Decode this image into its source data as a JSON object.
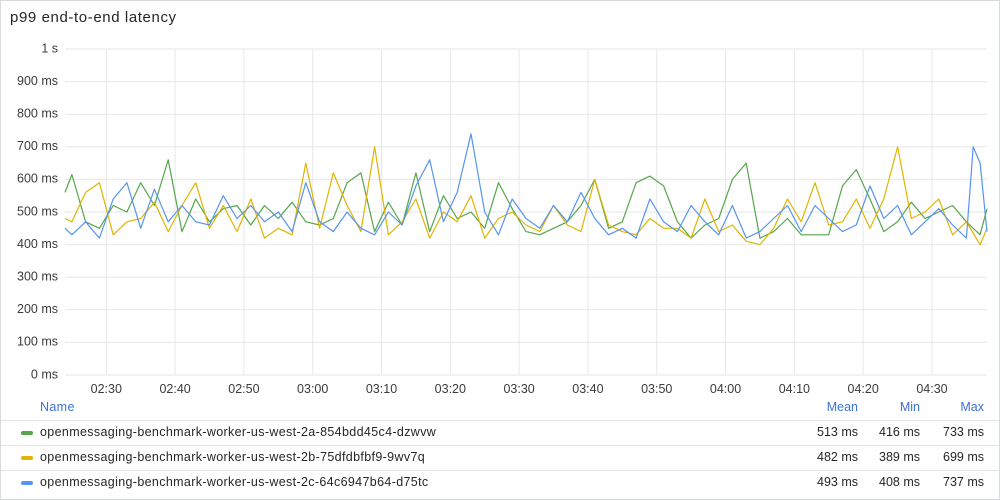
{
  "panel": {
    "title": "p99 end-to-end latency"
  },
  "legend": {
    "headers": {
      "name": "Name",
      "mean": "Mean",
      "min": "Min",
      "max": "Max"
    },
    "rows": [
      {
        "name": "openmessaging-benchmark-worker-us-west-2a-854bdd45c4-dzwvw",
        "color": "#56a64b",
        "mean": "513 ms",
        "min": "416 ms",
        "max": "733 ms"
      },
      {
        "name": "openmessaging-benchmark-worker-us-west-2b-75dfdbfbf9-9wv7q",
        "color": "#e0b400",
        "mean": "482 ms",
        "min": "389 ms",
        "max": "699 ms"
      },
      {
        "name": "openmessaging-benchmark-worker-us-west-2c-64c6947b64-d75tc",
        "color": "#5794f2",
        "mean": "493 ms",
        "min": "408 ms",
        "max": "737 ms"
      }
    ]
  },
  "chart_data": {
    "type": "line",
    "title": "p99 end-to-end latency",
    "xlabel": "",
    "ylabel": "",
    "unit": "ms",
    "ylim": [
      0,
      1000
    ],
    "y_ticks": [
      {
        "value": 1000,
        "label": "1 s"
      },
      {
        "value": 900,
        "label": "900 ms"
      },
      {
        "value": 800,
        "label": "800 ms"
      },
      {
        "value": 700,
        "label": "700 ms"
      },
      {
        "value": 600,
        "label": "600 ms"
      },
      {
        "value": 500,
        "label": "500 ms"
      },
      {
        "value": 400,
        "label": "400 ms"
      },
      {
        "value": 300,
        "label": "300 ms"
      },
      {
        "value": 200,
        "label": "200 ms"
      },
      {
        "value": 100,
        "label": "100 ms"
      },
      {
        "value": 0,
        "label": "0 ms"
      }
    ],
    "x_range": [
      "02:24",
      "04:38"
    ],
    "x_ticks": [
      "02:30",
      "02:40",
      "02:50",
      "03:00",
      "03:10",
      "03:20",
      "03:30",
      "03:40",
      "03:50",
      "04:00",
      "04:10",
      "04:20",
      "04:30"
    ],
    "grid": true,
    "legend_position": "bottom",
    "series": [
      {
        "name": "openmessaging-benchmark-worker-us-west-2a-854bdd45c4-dzwvw",
        "color": "#56a64b",
        "points": [
          [
            "02:24",
            560
          ],
          [
            "02:25",
            615
          ],
          [
            "02:27",
            470
          ],
          [
            "02:29",
            450
          ],
          [
            "02:31",
            520
          ],
          [
            "02:33",
            500
          ],
          [
            "02:35",
            590
          ],
          [
            "02:37",
            520
          ],
          [
            "02:39",
            660
          ],
          [
            "02:41",
            440
          ],
          [
            "02:43",
            540
          ],
          [
            "02:45",
            470
          ],
          [
            "02:47",
            510
          ],
          [
            "02:49",
            520
          ],
          [
            "02:51",
            460
          ],
          [
            "02:53",
            520
          ],
          [
            "02:55",
            480
          ],
          [
            "02:57",
            530
          ],
          [
            "02:59",
            470
          ],
          [
            "03:01",
            460
          ],
          [
            "03:03",
            480
          ],
          [
            "03:05",
            590
          ],
          [
            "03:07",
            620
          ],
          [
            "03:09",
            440
          ],
          [
            "03:11",
            530
          ],
          [
            "03:13",
            460
          ],
          [
            "03:15",
            620
          ],
          [
            "03:17",
            440
          ],
          [
            "03:19",
            550
          ],
          [
            "03:21",
            480
          ],
          [
            "03:23",
            500
          ],
          [
            "03:25",
            450
          ],
          [
            "03:27",
            590
          ],
          [
            "03:29",
            510
          ],
          [
            "03:31",
            440
          ],
          [
            "03:33",
            430
          ],
          [
            "03:35",
            450
          ],
          [
            "03:37",
            470
          ],
          [
            "03:39",
            520
          ],
          [
            "03:41",
            600
          ],
          [
            "03:43",
            450
          ],
          [
            "03:45",
            470
          ],
          [
            "03:47",
            590
          ],
          [
            "03:49",
            610
          ],
          [
            "03:51",
            580
          ],
          [
            "03:53",
            470
          ],
          [
            "03:55",
            420
          ],
          [
            "03:57",
            460
          ],
          [
            "03:59",
            480
          ],
          [
            "04:01",
            600
          ],
          [
            "04:03",
            650
          ],
          [
            "04:05",
            420
          ],
          [
            "04:07",
            440
          ],
          [
            "04:09",
            480
          ],
          [
            "04:11",
            430
          ],
          [
            "04:13",
            430
          ],
          [
            "04:15",
            430
          ],
          [
            "04:17",
            580
          ],
          [
            "04:19",
            630
          ],
          [
            "04:21",
            540
          ],
          [
            "04:23",
            440
          ],
          [
            "04:25",
            470
          ],
          [
            "04:27",
            530
          ],
          [
            "04:29",
            480
          ],
          [
            "04:31",
            500
          ],
          [
            "04:33",
            520
          ],
          [
            "04:35",
            470
          ],
          [
            "04:37",
            430
          ],
          [
            "04:38",
            510
          ]
        ]
      },
      {
        "name": "openmessaging-benchmark-worker-us-west-2b-75dfdbfbf9-9wv7q",
        "color": "#e0b400",
        "points": [
          [
            "02:24",
            480
          ],
          [
            "02:25",
            470
          ],
          [
            "02:27",
            560
          ],
          [
            "02:29",
            590
          ],
          [
            "02:31",
            430
          ],
          [
            "02:33",
            470
          ],
          [
            "02:35",
            480
          ],
          [
            "02:37",
            530
          ],
          [
            "02:39",
            440
          ],
          [
            "02:41",
            520
          ],
          [
            "02:43",
            590
          ],
          [
            "02:45",
            450
          ],
          [
            "02:47",
            520
          ],
          [
            "02:49",
            440
          ],
          [
            "02:51",
            540
          ],
          [
            "02:53",
            420
          ],
          [
            "02:55",
            450
          ],
          [
            "02:57",
            430
          ],
          [
            "02:59",
            650
          ],
          [
            "03:01",
            450
          ],
          [
            "03:03",
            620
          ],
          [
            "03:05",
            520
          ],
          [
            "03:07",
            440
          ],
          [
            "03:09",
            700
          ],
          [
            "03:11",
            430
          ],
          [
            "03:13",
            470
          ],
          [
            "03:15",
            540
          ],
          [
            "03:17",
            420
          ],
          [
            "03:19",
            500
          ],
          [
            "03:21",
            470
          ],
          [
            "03:23",
            550
          ],
          [
            "03:25",
            420
          ],
          [
            "03:27",
            480
          ],
          [
            "03:29",
            500
          ],
          [
            "03:31",
            460
          ],
          [
            "03:33",
            440
          ],
          [
            "03:35",
            520
          ],
          [
            "03:37",
            460
          ],
          [
            "03:39",
            440
          ],
          [
            "03:41",
            600
          ],
          [
            "03:43",
            460
          ],
          [
            "03:45",
            440
          ],
          [
            "03:47",
            430
          ],
          [
            "03:49",
            480
          ],
          [
            "03:51",
            450
          ],
          [
            "03:53",
            450
          ],
          [
            "03:55",
            420
          ],
          [
            "03:57",
            540
          ],
          [
            "03:59",
            440
          ],
          [
            "04:01",
            460
          ],
          [
            "04:03",
            410
          ],
          [
            "04:05",
            400
          ],
          [
            "04:07",
            450
          ],
          [
            "04:09",
            540
          ],
          [
            "04:11",
            470
          ],
          [
            "04:13",
            590
          ],
          [
            "04:15",
            460
          ],
          [
            "04:17",
            470
          ],
          [
            "04:19",
            540
          ],
          [
            "04:21",
            450
          ],
          [
            "04:23",
            540
          ],
          [
            "04:25",
            700
          ],
          [
            "04:27",
            480
          ],
          [
            "04:29",
            500
          ],
          [
            "04:31",
            540
          ],
          [
            "04:33",
            430
          ],
          [
            "04:35",
            470
          ],
          [
            "04:37",
            400
          ],
          [
            "04:38",
            450
          ]
        ]
      },
      {
        "name": "openmessaging-benchmark-worker-us-west-2c-64c6947b64-d75tc",
        "color": "#5794f2",
        "points": [
          [
            "02:24",
            450
          ],
          [
            "02:25",
            430
          ],
          [
            "02:27",
            470
          ],
          [
            "02:29",
            420
          ],
          [
            "02:31",
            540
          ],
          [
            "02:33",
            590
          ],
          [
            "02:35",
            450
          ],
          [
            "02:37",
            570
          ],
          [
            "02:39",
            470
          ],
          [
            "02:41",
            520
          ],
          [
            "02:43",
            470
          ],
          [
            "02:45",
            460
          ],
          [
            "02:47",
            550
          ],
          [
            "02:49",
            480
          ],
          [
            "02:51",
            520
          ],
          [
            "02:53",
            470
          ],
          [
            "02:55",
            500
          ],
          [
            "02:57",
            440
          ],
          [
            "02:59",
            590
          ],
          [
            "03:01",
            470
          ],
          [
            "03:03",
            440
          ],
          [
            "03:05",
            500
          ],
          [
            "03:07",
            450
          ],
          [
            "03:09",
            430
          ],
          [
            "03:11",
            500
          ],
          [
            "03:13",
            460
          ],
          [
            "03:15",
            580
          ],
          [
            "03:17",
            660
          ],
          [
            "03:19",
            470
          ],
          [
            "03:21",
            560
          ],
          [
            "03:23",
            740
          ],
          [
            "03:25",
            500
          ],
          [
            "03:27",
            430
          ],
          [
            "03:29",
            540
          ],
          [
            "03:31",
            480
          ],
          [
            "03:33",
            450
          ],
          [
            "03:35",
            520
          ],
          [
            "03:37",
            470
          ],
          [
            "03:39",
            560
          ],
          [
            "03:41",
            480
          ],
          [
            "03:43",
            430
          ],
          [
            "03:45",
            450
          ],
          [
            "03:47",
            420
          ],
          [
            "03:49",
            540
          ],
          [
            "03:51",
            470
          ],
          [
            "03:53",
            440
          ],
          [
            "03:55",
            520
          ],
          [
            "03:57",
            470
          ],
          [
            "03:59",
            430
          ],
          [
            "04:01",
            520
          ],
          [
            "04:03",
            420
          ],
          [
            "04:05",
            440
          ],
          [
            "04:07",
            480
          ],
          [
            "04:09",
            520
          ],
          [
            "04:11",
            440
          ],
          [
            "04:13",
            520
          ],
          [
            "04:15",
            480
          ],
          [
            "04:17",
            440
          ],
          [
            "04:19",
            460
          ],
          [
            "04:21",
            580
          ],
          [
            "04:23",
            480
          ],
          [
            "04:25",
            520
          ],
          [
            "04:27",
            430
          ],
          [
            "04:29",
            470
          ],
          [
            "04:31",
            510
          ],
          [
            "04:33",
            460
          ],
          [
            "04:35",
            420
          ],
          [
            "04:36",
            700
          ],
          [
            "04:37",
            650
          ],
          [
            "04:38",
            440
          ]
        ]
      }
    ]
  }
}
